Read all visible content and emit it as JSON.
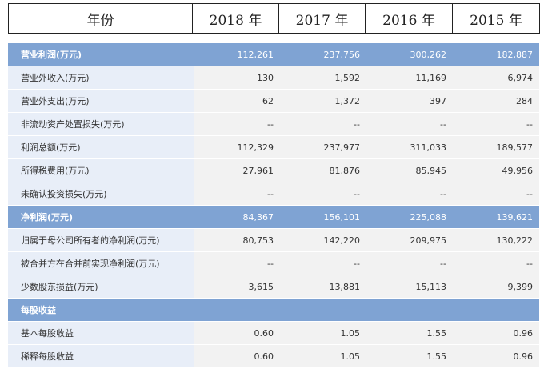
{
  "header": {
    "label": "年份",
    "years": [
      "2018 年",
      "2017 年",
      "2016 年",
      "2015 年"
    ]
  },
  "rows": [
    {
      "label": "营业利润(万元)",
      "values": [
        "112,261",
        "237,756",
        "300,262",
        "182,887"
      ],
      "highlight": true
    },
    {
      "label": "营业外收入(万元)",
      "values": [
        "130",
        "1,592",
        "11,169",
        "6,974"
      ]
    },
    {
      "label": "营业外支出(万元)",
      "values": [
        "62",
        "1,372",
        "397",
        "284"
      ]
    },
    {
      "label": "非流动资产处置损失(万元)",
      "values": [
        "--",
        "--",
        "--",
        "--"
      ]
    },
    {
      "label": "利润总额(万元)",
      "values": [
        "112,329",
        "237,977",
        "311,033",
        "189,577"
      ]
    },
    {
      "label": "所得税费用(万元)",
      "values": [
        "27,961",
        "81,876",
        "85,945",
        "49,956"
      ]
    },
    {
      "label": "未确认投资损失(万元)",
      "values": [
        "--",
        "--",
        "--",
        "--"
      ]
    },
    {
      "label": "净利润(万元)",
      "values": [
        "84,367",
        "156,101",
        "225,088",
        "139,621"
      ],
      "highlight": true
    },
    {
      "label": "归属于母公司所有者的净利润(万元)",
      "values": [
        "80,753",
        "142,220",
        "209,975",
        "130,222"
      ]
    },
    {
      "label": "被合并方在合并前实现净利润(万元)",
      "values": [
        "--",
        "--",
        "--",
        "--"
      ]
    },
    {
      "label": "少数股东损益(万元)",
      "values": [
        "3,615",
        "13,881",
        "15,113",
        "9,399"
      ]
    },
    {
      "label": "每股收益",
      "values": [
        "",
        "",
        "",
        ""
      ],
      "highlight": true
    },
    {
      "label": "基本每股收益",
      "values": [
        "0.60",
        "1.05",
        "1.55",
        "0.96"
      ]
    },
    {
      "label": "稀释每股收益",
      "values": [
        "0.60",
        "1.05",
        "1.55",
        "0.96"
      ]
    }
  ]
}
